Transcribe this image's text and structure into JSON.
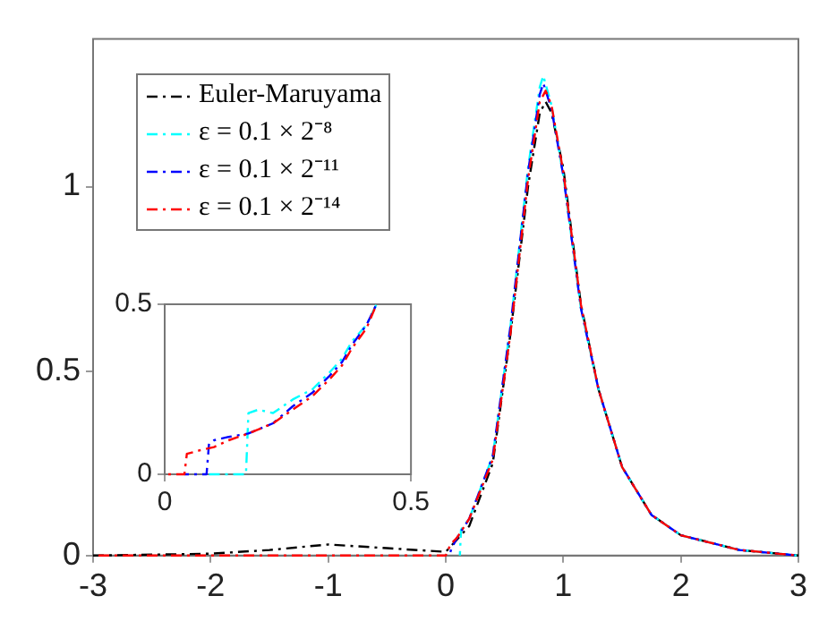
{
  "chart_data": [
    {
      "type": "line",
      "xlim": [
        -3,
        3
      ],
      "ylim": [
        0,
        1.4
      ],
      "xticks": [
        -3,
        -2,
        -1,
        0,
        1,
        2,
        3
      ],
      "yticks": [
        0,
        0.5,
        1
      ],
      "grid": false,
      "legend": "top left",
      "marker": "none",
      "line_style": "dashed",
      "series": [
        {
          "name": "Euler-Maruyama",
          "color": "#000000",
          "x": [
            -3,
            -2,
            -1.5,
            -1,
            -0.5,
            0,
            0.2,
            0.4,
            0.55,
            0.7,
            0.8,
            0.85,
            0.9,
            1,
            1.15,
            1.3,
            1.5,
            1.75,
            2,
            2.5,
            3
          ],
          "values": [
            0,
            0.005,
            0.015,
            0.03,
            0.02,
            0.01,
            0.08,
            0.25,
            0.6,
            1.0,
            1.2,
            1.23,
            1.2,
            1.05,
            0.68,
            0.45,
            0.24,
            0.11,
            0.055,
            0.015,
            0
          ]
        },
        {
          "name": "ε = 0.1 × 2⁻⁸",
          "color": "#00ffff",
          "x": [
            0.12,
            0.13,
            0.2,
            0.4,
            0.55,
            0.7,
            0.8,
            0.83,
            0.9,
            1,
            1.15,
            1.3,
            1.5,
            1.75,
            2,
            2.5,
            3
          ],
          "values": [
            0,
            0.07,
            0.1,
            0.27,
            0.62,
            1.05,
            1.27,
            1.3,
            1.22,
            1.03,
            0.67,
            0.45,
            0.24,
            0.11,
            0.055,
            0.015,
            0
          ]
        },
        {
          "name": "ε = 0.1 × 2⁻¹¹",
          "color": "#0000ff",
          "x": [
            0.03,
            0.05,
            0.1,
            0.2,
            0.4,
            0.55,
            0.7,
            0.8,
            0.83,
            0.9,
            1,
            1.15,
            1.3,
            1.5,
            1.75,
            2,
            2.5,
            3
          ],
          "values": [
            0,
            0.02,
            0.05,
            0.1,
            0.27,
            0.62,
            1.04,
            1.25,
            1.28,
            1.21,
            1.03,
            0.67,
            0.45,
            0.24,
            0.11,
            0.055,
            0.015,
            0
          ]
        },
        {
          "name": "ε = 0.1 × 2⁻¹⁴",
          "color": "#ff0000",
          "x": [
            -3,
            0,
            0.04,
            0.1,
            0.2,
            0.4,
            0.55,
            0.7,
            0.8,
            0.85,
            0.9,
            1,
            1.15,
            1.3,
            1.5,
            1.75,
            2,
            2.5,
            3
          ],
          "values": [
            0,
            0,
            0.03,
            0.05,
            0.1,
            0.26,
            0.6,
            1.02,
            1.23,
            1.26,
            1.22,
            1.04,
            0.68,
            0.45,
            0.24,
            0.11,
            0.055,
            0.015,
            0
          ]
        }
      ]
    },
    {
      "type": "line",
      "xlim": [
        0,
        0.5
      ],
      "ylim": [
        0,
        0.5
      ],
      "xticks": [
        0,
        0.5
      ],
      "yticks": [
        0,
        0.5
      ],
      "grid": false,
      "marker": "none",
      "line_style": "dashed",
      "series": [
        {
          "color": "#00ffff",
          "x": [
            0.09,
            0.165,
            0.17,
            0.19,
            0.22,
            0.26,
            0.3,
            0.335,
            0.36,
            0.38,
            0.41,
            0.43
          ],
          "values": [
            0,
            0,
            0.18,
            0.19,
            0.18,
            0.22,
            0.25,
            0.3,
            0.34,
            0.39,
            0.44,
            0.5
          ]
        },
        {
          "color": "#0000ff",
          "x": [
            0.04,
            0.085,
            0.09,
            0.1,
            0.13,
            0.17,
            0.22,
            0.26,
            0.3,
            0.335,
            0.36,
            0.38,
            0.41,
            0.43
          ],
          "values": [
            0,
            0,
            0.09,
            0.1,
            0.11,
            0.12,
            0.15,
            0.2,
            0.24,
            0.29,
            0.33,
            0.38,
            0.44,
            0.5
          ]
        },
        {
          "color": "#ff0000",
          "x": [
            0,
            0.04,
            0.045,
            0.07,
            0.1,
            0.13,
            0.17,
            0.22,
            0.26,
            0.3,
            0.335,
            0.36,
            0.38,
            0.41,
            0.43
          ],
          "values": [
            0,
            0,
            0.06,
            0.07,
            0.08,
            0.1,
            0.12,
            0.15,
            0.19,
            0.23,
            0.28,
            0.32,
            0.37,
            0.43,
            0.5
          ]
        }
      ]
    }
  ]
}
